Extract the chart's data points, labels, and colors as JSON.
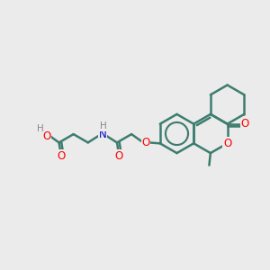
{
  "bg_color": "#ebebeb",
  "bond_color": "#3d7d6e",
  "bond_width": 1.8,
  "atom_colors": {
    "O": "#ff0000",
    "N": "#0000cc",
    "H": "#888888"
  },
  "font_size_atom": 8.5,
  "font_size_H": 7.5
}
